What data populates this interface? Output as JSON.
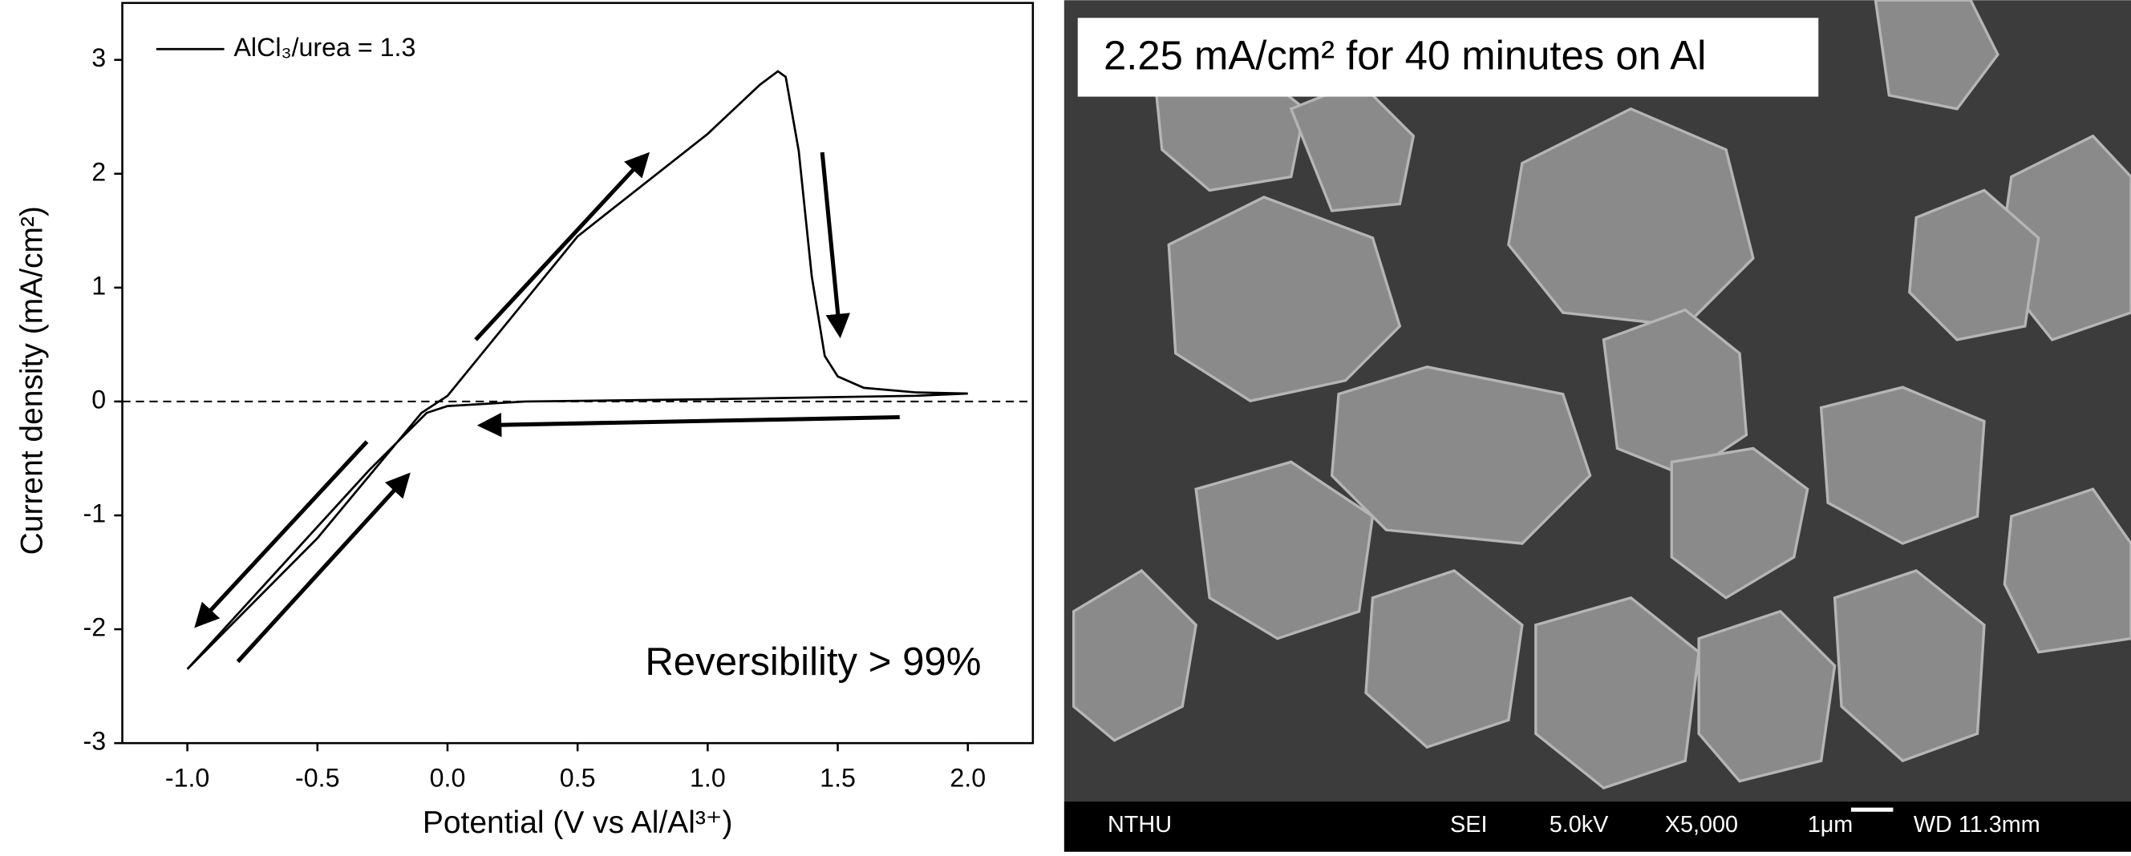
{
  "chart_data": {
    "type": "line",
    "x_label": "Potential (V vs Al/Al³⁺)",
    "y_label": "Current density (mA/cm²)",
    "annotation": "Reversibility > 99%",
    "x": [
      -1.0,
      -0.5,
      -0.1,
      0.0,
      0.5,
      1.0,
      1.2,
      1.27,
      1.3,
      1.35,
      1.4,
      1.45,
      1.5,
      1.6,
      1.8,
      2.0,
      1.8,
      1.0,
      0.3,
      0.0,
      -0.08,
      -0.3,
      -1.0
    ],
    "series": [
      {
        "name": "AlCl₃/urea = 1.3",
        "color": "#000000",
        "values": [
          -2.35,
          -1.2,
          -0.1,
          0.05,
          1.45,
          2.35,
          2.78,
          2.9,
          2.85,
          2.2,
          1.1,
          0.4,
          0.22,
          0.12,
          0.08,
          0.07,
          0.05,
          0.02,
          0.0,
          -0.04,
          -0.1,
          -0.6,
          -2.35
        ]
      }
    ],
    "xlim": [
      -1.25,
      2.25
    ],
    "ylim": [
      -3,
      3.5
    ],
    "xticks": [
      {
        "value": -1,
        "label": "-1.0"
      },
      -0.5,
      {
        "value": 0,
        "label": "0.0"
      },
      0.5,
      {
        "value": 1,
        "label": "1.0"
      },
      1.5,
      {
        "value": 2,
        "label": "2.0"
      }
    ],
    "yticks": [
      -3,
      -2,
      -1,
      0,
      1,
      2,
      3
    ],
    "reference_line": 0,
    "grid": false,
    "legend": "upper left"
  },
  "image": {
    "caption": "2.25 mA/cm² for 40 minutes on Al",
    "info_bar": [
      "NTHU",
      "SEI",
      "5.0kV",
      "X5,000",
      "1μm",
      "WD 11.3mm"
    ]
  }
}
